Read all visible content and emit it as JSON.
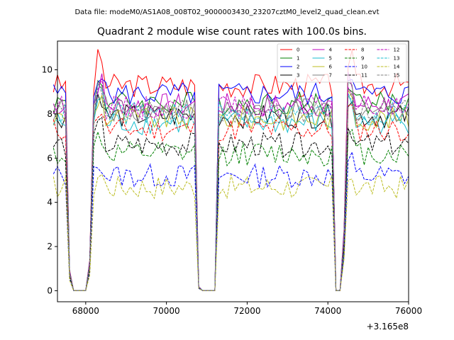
{
  "figure": {
    "suptitle": "Data file: modeM0/AS1A08_008T02_9000003430_23207cztM0_level2_quad_clean.evt"
  },
  "chart_data": {
    "type": "line",
    "title": "Quadrant 2 module wise count rates with 100.0s bins.",
    "xlabel": "",
    "ylabel": "",
    "x_offset_label": "+3.165e8",
    "xlim": [
      67300,
      76000
    ],
    "ylim": [
      -0.5,
      11.3
    ],
    "x_ticks": [
      68000,
      70000,
      72000,
      74000,
      76000
    ],
    "x_tick_labels": [
      "68000",
      "70000",
      "72000",
      "74000",
      "76000"
    ],
    "y_ticks": [
      0,
      2,
      4,
      6,
      8,
      10
    ],
    "y_tick_labels": [
      "0",
      "2",
      "4",
      "6",
      "8",
      "10"
    ],
    "grid": false,
    "legend_position": "top-right",
    "legend_columns": 4,
    "segments": [
      {
        "x_start": 67200,
        "x_end": 67500
      },
      {
        "x_start": 67600,
        "x_end": 67600,
        "zero": true
      },
      {
        "x_start": 67700,
        "x_end": 68000,
        "zero": true
      },
      {
        "x_start": 68100,
        "x_end": 70800
      },
      {
        "x_start": 70900,
        "x_end": 71200,
        "zero": true
      },
      {
        "x_start": 71300,
        "x_end": 74100
      },
      {
        "x_start": 74200,
        "x_end": 74300,
        "zero": true
      },
      {
        "x_start": 74400,
        "x_end": 76000
      }
    ],
    "series": [
      {
        "name": "0",
        "color": "#ff0000",
        "dash": "solid",
        "level": 9.3
      },
      {
        "name": "1",
        "color": "#008000",
        "dash": "solid",
        "level": 8.5
      },
      {
        "name": "2",
        "color": "#0000ff",
        "dash": "solid",
        "level": 8.9
      },
      {
        "name": "3",
        "color": "#000000",
        "dash": "solid",
        "level": 7.9
      },
      {
        "name": "4",
        "color": "#bf00bf",
        "dash": "solid",
        "level": 8.4
      },
      {
        "name": "5",
        "color": "#17becf",
        "dash": "solid",
        "level": 7.6
      },
      {
        "name": "6",
        "color": "#bcbd22",
        "dash": "solid",
        "level": 7.8
      },
      {
        "name": "7",
        "color": "#7f7f7f",
        "dash": "solid",
        "level": 8.2
      },
      {
        "name": "8",
        "color": "#ff0000",
        "dash": "dashed",
        "level": 7.3
      },
      {
        "name": "9",
        "color": "#008000",
        "dash": "dashed",
        "level": 6.2
      },
      {
        "name": "10",
        "color": "#0000ff",
        "dash": "dashed",
        "level": 5.2
      },
      {
        "name": "11",
        "color": "#000000",
        "dash": "dashed",
        "level": 6.6
      },
      {
        "name": "12",
        "color": "#bf00bf",
        "dash": "dashed",
        "level": 8.3
      },
      {
        "name": "13",
        "color": "#17becf",
        "dash": "dashed",
        "level": 8.0
      },
      {
        "name": "14",
        "color": "#bcbd22",
        "dash": "dashed",
        "level": 4.7
      },
      {
        "name": "15",
        "color": "#7f7f7f",
        "dash": "dashed",
        "level": 8.1
      }
    ]
  }
}
